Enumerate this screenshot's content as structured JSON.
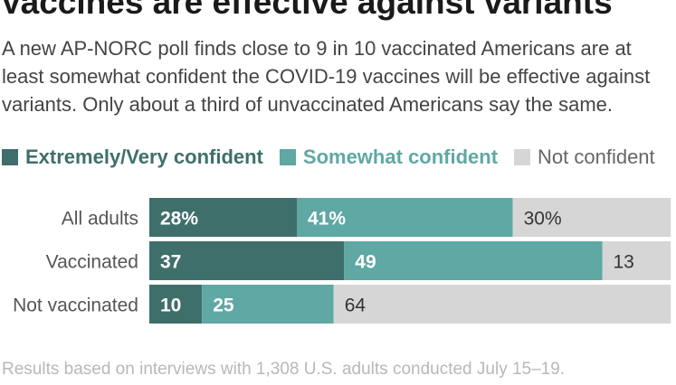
{
  "title": "Vaccines are effective against variants",
  "subtitle": "A new AP-NORC poll finds close to 9 in 10 vaccinated Americans are at least somewhat confident the COVID-19 vaccines will be effective against variants. Only about a third of unvaccinated Americans say the same.",
  "note": "Results based on interviews with 1,308 U.S. adults conducted July 15–19.",
  "colors": {
    "extremely": "#3f6f6b",
    "somewhat": "#5fa8a4",
    "not": "#d6d6d6",
    "label_dark": "#333333"
  },
  "chart_data": {
    "type": "bar",
    "orientation": "horizontal",
    "stacked": true,
    "categories": [
      "All adults",
      "Vaccinated",
      "Not vaccinated"
    ],
    "series": [
      {
        "name": "Extremely/Very confident",
        "values": [
          28,
          37,
          10
        ],
        "labels": [
          "28%",
          "37",
          "10"
        ],
        "color": "#3f6f6b"
      },
      {
        "name": "Somewhat confident",
        "values": [
          41,
          49,
          25
        ],
        "labels": [
          "41%",
          "49",
          "25"
        ],
        "color": "#5fa8a4"
      },
      {
        "name": "Not confident",
        "values": [
          30,
          13,
          64
        ],
        "labels": [
          "30%",
          "13",
          "64"
        ],
        "color": "#d6d6d6"
      }
    ],
    "xlim": [
      0,
      100
    ],
    "legend": "top"
  }
}
